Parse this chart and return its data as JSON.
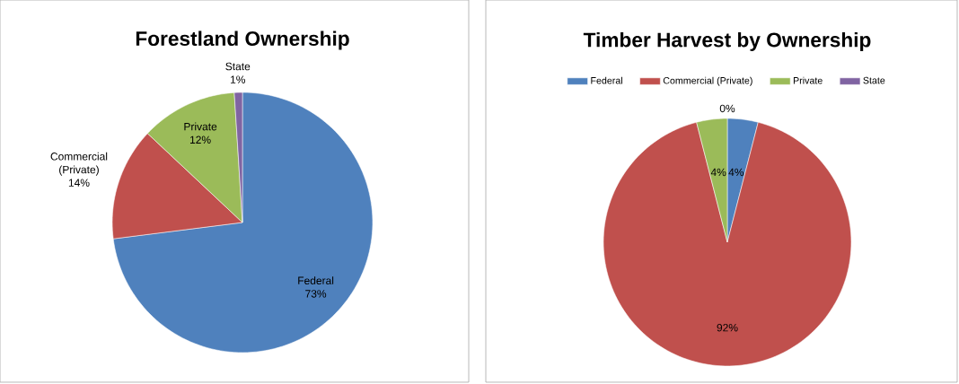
{
  "chart_data": [
    {
      "type": "pie",
      "title": "Forestland Ownership",
      "categories": [
        "Federal",
        "Commercial (Private)",
        "Private",
        "State"
      ],
      "values": [
        73,
        14,
        12,
        1
      ],
      "colors": [
        "#4f81bd",
        "#c0504d",
        "#9bbb59",
        "#8064a2"
      ],
      "value_labels": [
        "73%",
        "14%",
        "12%",
        "1%"
      ],
      "legend": false
    },
    {
      "type": "pie",
      "title": "Timber Harvest by Ownership",
      "categories": [
        "Federal",
        "Commercial (Private)",
        "Private",
        "State"
      ],
      "values": [
        4,
        92,
        4,
        0
      ],
      "colors": [
        "#4f81bd",
        "#c0504d",
        "#9bbb59",
        "#8064a2"
      ],
      "value_labels": [
        "4%",
        "92%",
        "4%",
        "0%"
      ],
      "legend": "top"
    }
  ]
}
